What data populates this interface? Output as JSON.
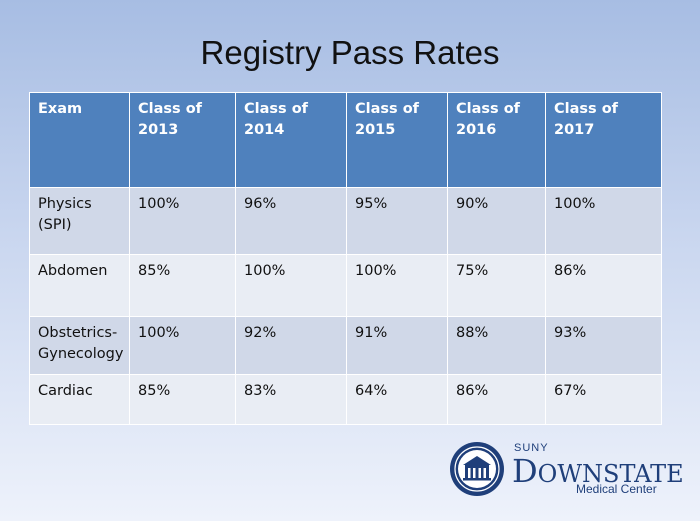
{
  "slide": {
    "title": "Registry Pass Rates"
  },
  "table": {
    "headers": [
      "Exam",
      "Class of 2013",
      "Class of 2014",
      "Class of 2015",
      "Class of 2016",
      "Class of 2017"
    ],
    "rows": [
      [
        "Physics (SPI)",
        "100%",
        "96%",
        "95%",
        "90%",
        "100%"
      ],
      [
        "Abdomen",
        "85%",
        "100%",
        "100%",
        "75%",
        "86%"
      ],
      [
        "Obstetrics-Gynecology",
        "100%",
        "92%",
        "91%",
        "88%",
        "93%"
      ],
      [
        "Cardiac",
        "85%",
        "83%",
        "64%",
        "86%",
        "67%"
      ]
    ]
  },
  "logo": {
    "suny": "SUNY",
    "initial": "D",
    "name_rest": "OWNSTATE",
    "subtitle": "Medical Center",
    "icon": "seal-icon",
    "brand_color": "#1f3f7a"
  },
  "colors": {
    "header_bg": "#4f81bd",
    "row_odd": "#d0d8e8",
    "row_even": "#e9edf4"
  }
}
